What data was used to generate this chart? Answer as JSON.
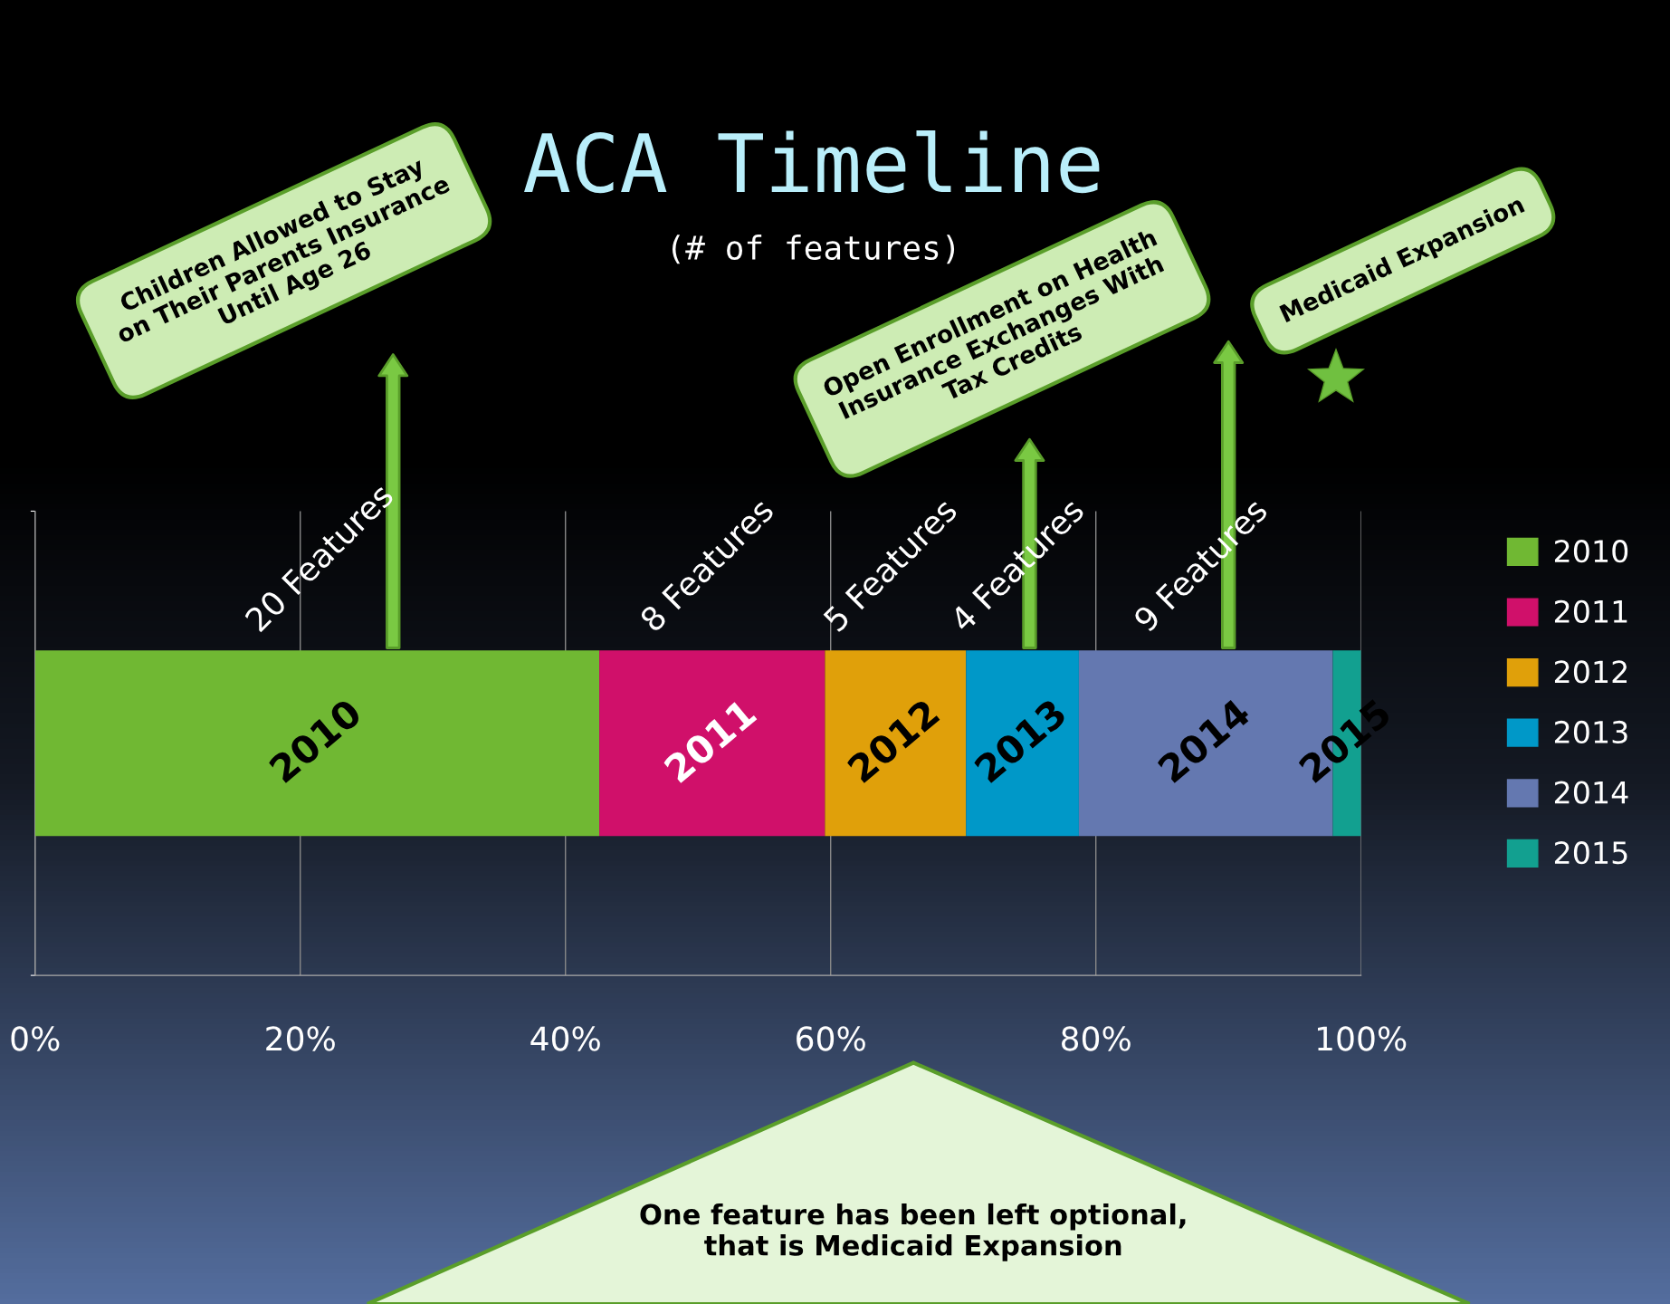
{
  "chart_data": {
    "type": "bar",
    "orientation": "horizontal",
    "stacked": true,
    "title": "ACA Timeline",
    "subtitle": "(# of features)",
    "categories": [
      null
    ],
    "series": [
      {
        "name": "2010",
        "color": "#70b833",
        "values": [
          42.55
        ]
      },
      {
        "name": "2011",
        "color": "#d0106a",
        "values": [
          17.02
        ]
      },
      {
        "name": "2012",
        "color": "#e0a00a",
        "values": [
          10.64
        ]
      },
      {
        "name": "2013",
        "color": "#0098c8",
        "values": [
          8.51
        ]
      },
      {
        "name": "2014",
        "color": "#6478b0",
        "values": [
          19.15
        ]
      },
      {
        "name": "2015",
        "color": "#12a090",
        "values": [
          2.13
        ]
      }
    ],
    "xlim": [
      0,
      100
    ],
    "xticks": [
      {
        "value": 0,
        "label": "0%"
      },
      {
        "value": 20,
        "label": "20%"
      },
      {
        "value": 40,
        "label": "40%"
      },
      {
        "value": 60,
        "label": "60%"
      },
      {
        "value": 80,
        "label": "80%"
      },
      {
        "value": 100,
        "label": "100%"
      }
    ],
    "grid": "x",
    "legend": "right",
    "tick_labels": "x",
    "annotations": [
      "20 Features",
      "8 Features",
      "5 Features",
      "4 Features",
      "9 Features",
      "Children Allowed to Stay on Their Parents Insurance Until Age 26",
      "Open Enrollment on Health Insurance Exchanges With Tax Credits",
      "Medicaid Expansion",
      "One feature has been left optional, that is Medicaid Expansion"
    ]
  }
}
